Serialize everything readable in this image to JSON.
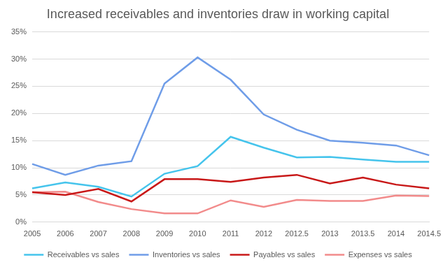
{
  "chart_data": {
    "type": "line",
    "title": "Increased receivables and inventories draw in working capital",
    "categories": [
      "2005",
      "2006",
      "2007",
      "2008",
      "2009",
      "2010",
      "2011",
      "2012",
      "2012.5",
      "2013",
      "2013.5",
      "2014",
      "2014.5"
    ],
    "series": [
      {
        "name": "Receivables vs sales",
        "color": "#45c4ec",
        "values": [
          6.2,
          7.3,
          6.5,
          4.7,
          8.9,
          10.3,
          15.7,
          13.7,
          11.9,
          12.0,
          11.5,
          11.1,
          11.1
        ]
      },
      {
        "name": "Inventories vs sales",
        "color": "#6f9de8",
        "values": [
          10.7,
          8.7,
          10.4,
          11.2,
          25.5,
          30.3,
          26.2,
          19.8,
          17.0,
          15.0,
          14.6,
          14.1,
          12.3
        ]
      },
      {
        "name": "Payables vs sales",
        "color": "#c81818",
        "values": [
          5.5,
          5.0,
          6.1,
          3.8,
          7.9,
          7.9,
          7.4,
          8.2,
          8.7,
          7.1,
          8.2,
          6.9,
          6.2
        ]
      },
      {
        "name": "Expenses vs sales",
        "color": "#f28b8b",
        "values": [
          5.5,
          5.6,
          3.7,
          2.4,
          1.6,
          1.6,
          4.0,
          2.8,
          4.1,
          3.9,
          3.9,
          4.9,
          4.8
        ]
      }
    ],
    "ylim": [
      0,
      35
    ],
    "yticks": [
      {
        "value": 0,
        "label": "0%"
      },
      {
        "value": 5,
        "label": "5%"
      },
      {
        "value": 10,
        "label": "10%"
      },
      {
        "value": 15,
        "label": "15%"
      },
      {
        "value": 20,
        "label": "20%"
      },
      {
        "value": 25,
        "label": "25%"
      },
      {
        "value": 30,
        "label": "30%"
      },
      {
        "value": 35,
        "label": "35%"
      }
    ],
    "grid": true,
    "legend": "bottom"
  }
}
